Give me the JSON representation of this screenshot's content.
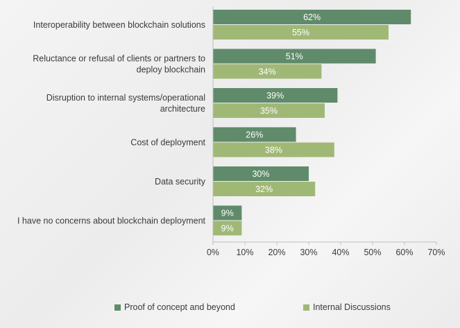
{
  "chart_data": {
    "type": "bar",
    "orientation": "horizontal",
    "categories": [
      [
        "Interoperability between blockchain solutions"
      ],
      [
        "Reluctance or refusal of clients or partners to",
        "deploy blockchain"
      ],
      [
        "Disruption to internal systems/operational",
        "architecture"
      ],
      [
        "Cost of deployment"
      ],
      [
        "Data security"
      ],
      [
        "I have no concerns about blockchain deployment"
      ]
    ],
    "series": [
      {
        "name": "Proof of concept and beyond",
        "values": [
          62,
          51,
          39,
          26,
          30,
          9
        ],
        "labels": [
          "62%",
          "51%",
          "39%",
          "26%",
          "30%",
          "9%"
        ],
        "color": "#5f8b6a"
      },
      {
        "name": "Internal Discussions",
        "values": [
          55,
          34,
          35,
          38,
          32,
          9
        ],
        "labels": [
          "55%",
          "34%",
          "35%",
          "38%",
          "32%",
          "9%"
        ],
        "color": "#a0b876"
      }
    ],
    "xlim": [
      0,
      70
    ],
    "xticks": [
      "0%",
      "10%",
      "20%",
      "30%",
      "40%",
      "50%",
      "60%",
      "70%"
    ],
    "grid": false,
    "legend_position": "bottom"
  }
}
